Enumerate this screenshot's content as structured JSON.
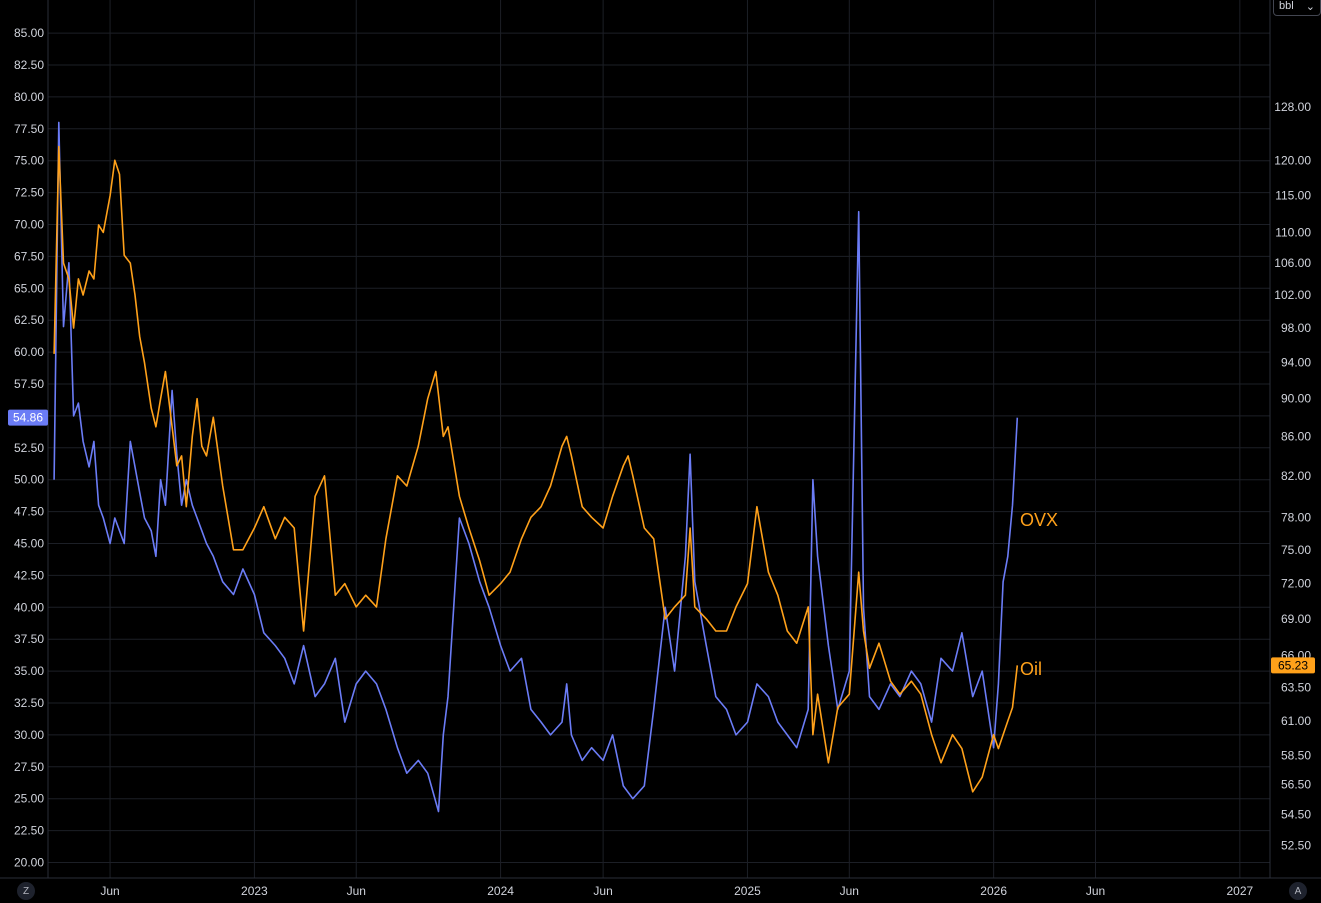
{
  "unit_selector": {
    "label": "bbl",
    "icon": "chevron-down-icon"
  },
  "corner_left": {
    "label": "Z"
  },
  "corner_right": {
    "label": "A"
  },
  "colors": {
    "ovx": "#6b7cf6",
    "oil": "#ffa11a",
    "grid": "#1c1f26",
    "background": "#000000"
  },
  "chart_data": {
    "type": "line",
    "x_axis": {
      "ticks": [
        "Jun",
        "2023",
        "Jun",
        "2024",
        "Jun",
        "2025",
        "Jun",
        "2026",
        "Jun",
        "2027"
      ],
      "tick_dates": [
        "2022-06-01",
        "2023-01-01",
        "2023-06-01",
        "2024-01-01",
        "2024-06-01",
        "2025-01-01",
        "2025-06-01",
        "2026-01-01",
        "2026-06-01",
        "2027-01-01"
      ],
      "range": [
        "2022-03-01",
        "2027-03-01"
      ]
    },
    "left_axis": {
      "ticks": [
        "20.00",
        "22.50",
        "25.00",
        "27.50",
        "30.00",
        "32.50",
        "35.00",
        "37.50",
        "40.00",
        "42.50",
        "45.00",
        "47.50",
        "50.00",
        "52.50",
        "55.00",
        "57.50",
        "60.00",
        "62.50",
        "65.00",
        "67.50",
        "70.00",
        "72.50",
        "75.00",
        "77.50",
        "80.00",
        "82.50",
        "85.00"
      ],
      "range": [
        17.5,
        86.2
      ]
    },
    "right_axis": {
      "scale": "log",
      "ticks": [
        "52.50",
        "54.50",
        "56.50",
        "58.50",
        "61.00",
        "63.50",
        "66.00",
        "69.00",
        "72.00",
        "75.00",
        "78.00",
        "82.00",
        "86.00",
        "90.00",
        "94.00",
        "98.00",
        "102.00",
        "106.00",
        "110.00",
        "115.00",
        "120.00",
        "128.00"
      ],
      "range": [
        50.5,
        140.0
      ]
    },
    "series": [
      {
        "name": "OVX",
        "axis": "left",
        "last_value": "54.86",
        "points": [
          [
            "2022-03-10",
            50
          ],
          [
            "2022-03-17",
            78
          ],
          [
            "2022-03-24",
            62
          ],
          [
            "2022-04-01",
            67
          ],
          [
            "2022-04-08",
            55
          ],
          [
            "2022-04-15",
            56
          ],
          [
            "2022-04-22",
            53
          ],
          [
            "2022-05-01",
            51
          ],
          [
            "2022-05-08",
            53
          ],
          [
            "2022-05-15",
            48
          ],
          [
            "2022-05-22",
            47
          ],
          [
            "2022-06-01",
            45
          ],
          [
            "2022-06-08",
            47
          ],
          [
            "2022-06-15",
            46
          ],
          [
            "2022-06-22",
            45
          ],
          [
            "2022-07-01",
            53
          ],
          [
            "2022-07-08",
            51
          ],
          [
            "2022-07-15",
            49
          ],
          [
            "2022-07-22",
            47
          ],
          [
            "2022-08-01",
            46
          ],
          [
            "2022-08-08",
            44
          ],
          [
            "2022-08-15",
            50
          ],
          [
            "2022-08-22",
            48
          ],
          [
            "2022-09-01",
            57
          ],
          [
            "2022-09-08",
            52
          ],
          [
            "2022-09-15",
            48
          ],
          [
            "2022-09-22",
            50
          ],
          [
            "2022-10-01",
            48
          ],
          [
            "2022-10-08",
            47
          ],
          [
            "2022-10-15",
            46
          ],
          [
            "2022-10-22",
            45
          ],
          [
            "2022-11-01",
            44
          ],
          [
            "2022-11-15",
            42
          ],
          [
            "2022-12-01",
            41
          ],
          [
            "2022-12-15",
            43
          ],
          [
            "2023-01-01",
            41
          ],
          [
            "2023-01-15",
            38
          ],
          [
            "2023-02-01",
            37
          ],
          [
            "2023-02-15",
            36
          ],
          [
            "2023-03-01",
            34
          ],
          [
            "2023-03-15",
            37
          ],
          [
            "2023-04-01",
            33
          ],
          [
            "2023-04-15",
            34
          ],
          [
            "2023-05-01",
            36
          ],
          [
            "2023-05-15",
            31
          ],
          [
            "2023-06-01",
            34
          ],
          [
            "2023-06-15",
            35
          ],
          [
            "2023-07-01",
            34
          ],
          [
            "2023-07-15",
            32
          ],
          [
            "2023-08-01",
            29
          ],
          [
            "2023-08-15",
            27
          ],
          [
            "2023-09-01",
            28
          ],
          [
            "2023-09-15",
            27
          ],
          [
            "2023-10-01",
            24
          ],
          [
            "2023-10-08",
            30
          ],
          [
            "2023-10-15",
            33
          ],
          [
            "2023-11-01",
            47
          ],
          [
            "2023-11-15",
            45
          ],
          [
            "2023-12-01",
            42
          ],
          [
            "2023-12-15",
            40
          ],
          [
            "2024-01-01",
            37
          ],
          [
            "2024-01-15",
            35
          ],
          [
            "2024-02-01",
            36
          ],
          [
            "2024-02-15",
            32
          ],
          [
            "2024-03-01",
            31
          ],
          [
            "2024-03-15",
            30
          ],
          [
            "2024-04-01",
            31
          ],
          [
            "2024-04-08",
            34
          ],
          [
            "2024-04-15",
            30
          ],
          [
            "2024-05-01",
            28
          ],
          [
            "2024-05-15",
            29
          ],
          [
            "2024-06-01",
            28
          ],
          [
            "2024-06-15",
            30
          ],
          [
            "2024-07-01",
            26
          ],
          [
            "2024-07-15",
            25
          ],
          [
            "2024-08-01",
            26
          ],
          [
            "2024-08-15",
            32
          ],
          [
            "2024-09-01",
            40
          ],
          [
            "2024-09-15",
            35
          ],
          [
            "2024-10-01",
            44
          ],
          [
            "2024-10-08",
            52
          ],
          [
            "2024-10-15",
            42
          ],
          [
            "2024-11-01",
            37
          ],
          [
            "2024-11-15",
            33
          ],
          [
            "2024-12-01",
            32
          ],
          [
            "2024-12-15",
            30
          ],
          [
            "2025-01-01",
            31
          ],
          [
            "2025-01-15",
            34
          ],
          [
            "2025-02-01",
            33
          ],
          [
            "2025-02-15",
            31
          ],
          [
            "2025-03-01",
            30
          ],
          [
            "2025-03-15",
            29
          ],
          [
            "2025-04-01",
            32
          ],
          [
            "2025-04-08",
            50
          ],
          [
            "2025-04-15",
            44
          ],
          [
            "2025-05-01",
            37
          ],
          [
            "2025-05-15",
            32
          ],
          [
            "2025-06-01",
            35
          ],
          [
            "2025-06-15",
            71
          ],
          [
            "2025-06-22",
            40
          ],
          [
            "2025-07-01",
            33
          ],
          [
            "2025-07-15",
            32
          ],
          [
            "2025-08-01",
            34
          ],
          [
            "2025-08-15",
            33
          ],
          [
            "2025-09-01",
            35
          ],
          [
            "2025-09-15",
            34
          ],
          [
            "2025-10-01",
            31
          ],
          [
            "2025-10-15",
            36
          ],
          [
            "2025-11-01",
            35
          ],
          [
            "2025-11-15",
            38
          ],
          [
            "2025-12-01",
            33
          ],
          [
            "2025-12-15",
            35
          ],
          [
            "2026-01-01",
            29
          ],
          [
            "2026-01-08",
            34
          ],
          [
            "2026-01-15",
            42
          ],
          [
            "2026-01-22",
            44
          ],
          [
            "2026-01-29",
            48
          ],
          [
            "2026-02-05",
            54.86
          ]
        ]
      },
      {
        "name": "Oil",
        "axis": "right",
        "last_value": "65.23",
        "points": [
          [
            "2022-03-10",
            95
          ],
          [
            "2022-03-17",
            122
          ],
          [
            "2022-03-24",
            106
          ],
          [
            "2022-04-01",
            104
          ],
          [
            "2022-04-08",
            98
          ],
          [
            "2022-04-15",
            104
          ],
          [
            "2022-04-22",
            102
          ],
          [
            "2022-05-01",
            105
          ],
          [
            "2022-05-08",
            104
          ],
          [
            "2022-05-15",
            111
          ],
          [
            "2022-05-22",
            110
          ],
          [
            "2022-06-01",
            115
          ],
          [
            "2022-06-08",
            120
          ],
          [
            "2022-06-15",
            118
          ],
          [
            "2022-06-22",
            107
          ],
          [
            "2022-07-01",
            106
          ],
          [
            "2022-07-08",
            102
          ],
          [
            "2022-07-15",
            97
          ],
          [
            "2022-07-22",
            94
          ],
          [
            "2022-08-01",
            89
          ],
          [
            "2022-08-08",
            87
          ],
          [
            "2022-08-15",
            90
          ],
          [
            "2022-08-22",
            93
          ],
          [
            "2022-09-01",
            87
          ],
          [
            "2022-09-08",
            83
          ],
          [
            "2022-09-15",
            84
          ],
          [
            "2022-09-22",
            79
          ],
          [
            "2022-10-01",
            86
          ],
          [
            "2022-10-08",
            90
          ],
          [
            "2022-10-15",
            85
          ],
          [
            "2022-10-22",
            84
          ],
          [
            "2022-11-01",
            88
          ],
          [
            "2022-11-15",
            81
          ],
          [
            "2022-12-01",
            75
          ],
          [
            "2022-12-15",
            75
          ],
          [
            "2023-01-01",
            77
          ],
          [
            "2023-01-15",
            79
          ],
          [
            "2023-02-01",
            76
          ],
          [
            "2023-02-15",
            78
          ],
          [
            "2023-03-01",
            77
          ],
          [
            "2023-03-15",
            68
          ],
          [
            "2023-04-01",
            80
          ],
          [
            "2023-04-15",
            82
          ],
          [
            "2023-05-01",
            71
          ],
          [
            "2023-05-15",
            72
          ],
          [
            "2023-06-01",
            70
          ],
          [
            "2023-06-15",
            71
          ],
          [
            "2023-07-01",
            70
          ],
          [
            "2023-07-15",
            76
          ],
          [
            "2023-08-01",
            82
          ],
          [
            "2023-08-15",
            81
          ],
          [
            "2023-09-01",
            85
          ],
          [
            "2023-09-15",
            90
          ],
          [
            "2023-09-27",
            93
          ],
          [
            "2023-10-08",
            86
          ],
          [
            "2023-10-15",
            87
          ],
          [
            "2023-11-01",
            80
          ],
          [
            "2023-11-15",
            77
          ],
          [
            "2023-12-01",
            74
          ],
          [
            "2023-12-15",
            71
          ],
          [
            "2024-01-01",
            72
          ],
          [
            "2024-01-15",
            73
          ],
          [
            "2024-02-01",
            76
          ],
          [
            "2024-02-15",
            78
          ],
          [
            "2024-03-01",
            79
          ],
          [
            "2024-03-15",
            81
          ],
          [
            "2024-04-01",
            85
          ],
          [
            "2024-04-08",
            86
          ],
          [
            "2024-04-15",
            84
          ],
          [
            "2024-05-01",
            79
          ],
          [
            "2024-05-15",
            78
          ],
          [
            "2024-06-01",
            77
          ],
          [
            "2024-06-15",
            80
          ],
          [
            "2024-07-01",
            83
          ],
          [
            "2024-07-08",
            84
          ],
          [
            "2024-07-15",
            82
          ],
          [
            "2024-08-01",
            77
          ],
          [
            "2024-08-15",
            76
          ],
          [
            "2024-09-01",
            69
          ],
          [
            "2024-09-15",
            70
          ],
          [
            "2024-10-01",
            71
          ],
          [
            "2024-10-08",
            77
          ],
          [
            "2024-10-15",
            70
          ],
          [
            "2024-11-01",
            69
          ],
          [
            "2024-11-15",
            68
          ],
          [
            "2024-12-01",
            68
          ],
          [
            "2024-12-15",
            70
          ],
          [
            "2025-01-01",
            72
          ],
          [
            "2025-01-15",
            79
          ],
          [
            "2025-02-01",
            73
          ],
          [
            "2025-02-15",
            71
          ],
          [
            "2025-03-01",
            68
          ],
          [
            "2025-03-15",
            67
          ],
          [
            "2025-04-01",
            70
          ],
          [
            "2025-04-08",
            60
          ],
          [
            "2025-04-15",
            63
          ],
          [
            "2025-05-01",
            58
          ],
          [
            "2025-05-15",
            62
          ],
          [
            "2025-06-01",
            63
          ],
          [
            "2025-06-15",
            73
          ],
          [
            "2025-06-22",
            68
          ],
          [
            "2025-07-01",
            65
          ],
          [
            "2025-07-15",
            67
          ],
          [
            "2025-08-01",
            64
          ],
          [
            "2025-08-15",
            63
          ],
          [
            "2025-09-01",
            64
          ],
          [
            "2025-09-15",
            63
          ],
          [
            "2025-10-01",
            60
          ],
          [
            "2025-10-15",
            58
          ],
          [
            "2025-11-01",
            60
          ],
          [
            "2025-11-15",
            59
          ],
          [
            "2025-12-01",
            56
          ],
          [
            "2025-12-15",
            57
          ],
          [
            "2026-01-01",
            60
          ],
          [
            "2026-01-08",
            59
          ],
          [
            "2026-01-15",
            60
          ],
          [
            "2026-01-22",
            61
          ],
          [
            "2026-01-29",
            62
          ],
          [
            "2026-02-05",
            65.23
          ]
        ]
      }
    ],
    "series_labels": [
      {
        "text": "OVX"
      },
      {
        "text": "Oil"
      }
    ]
  }
}
